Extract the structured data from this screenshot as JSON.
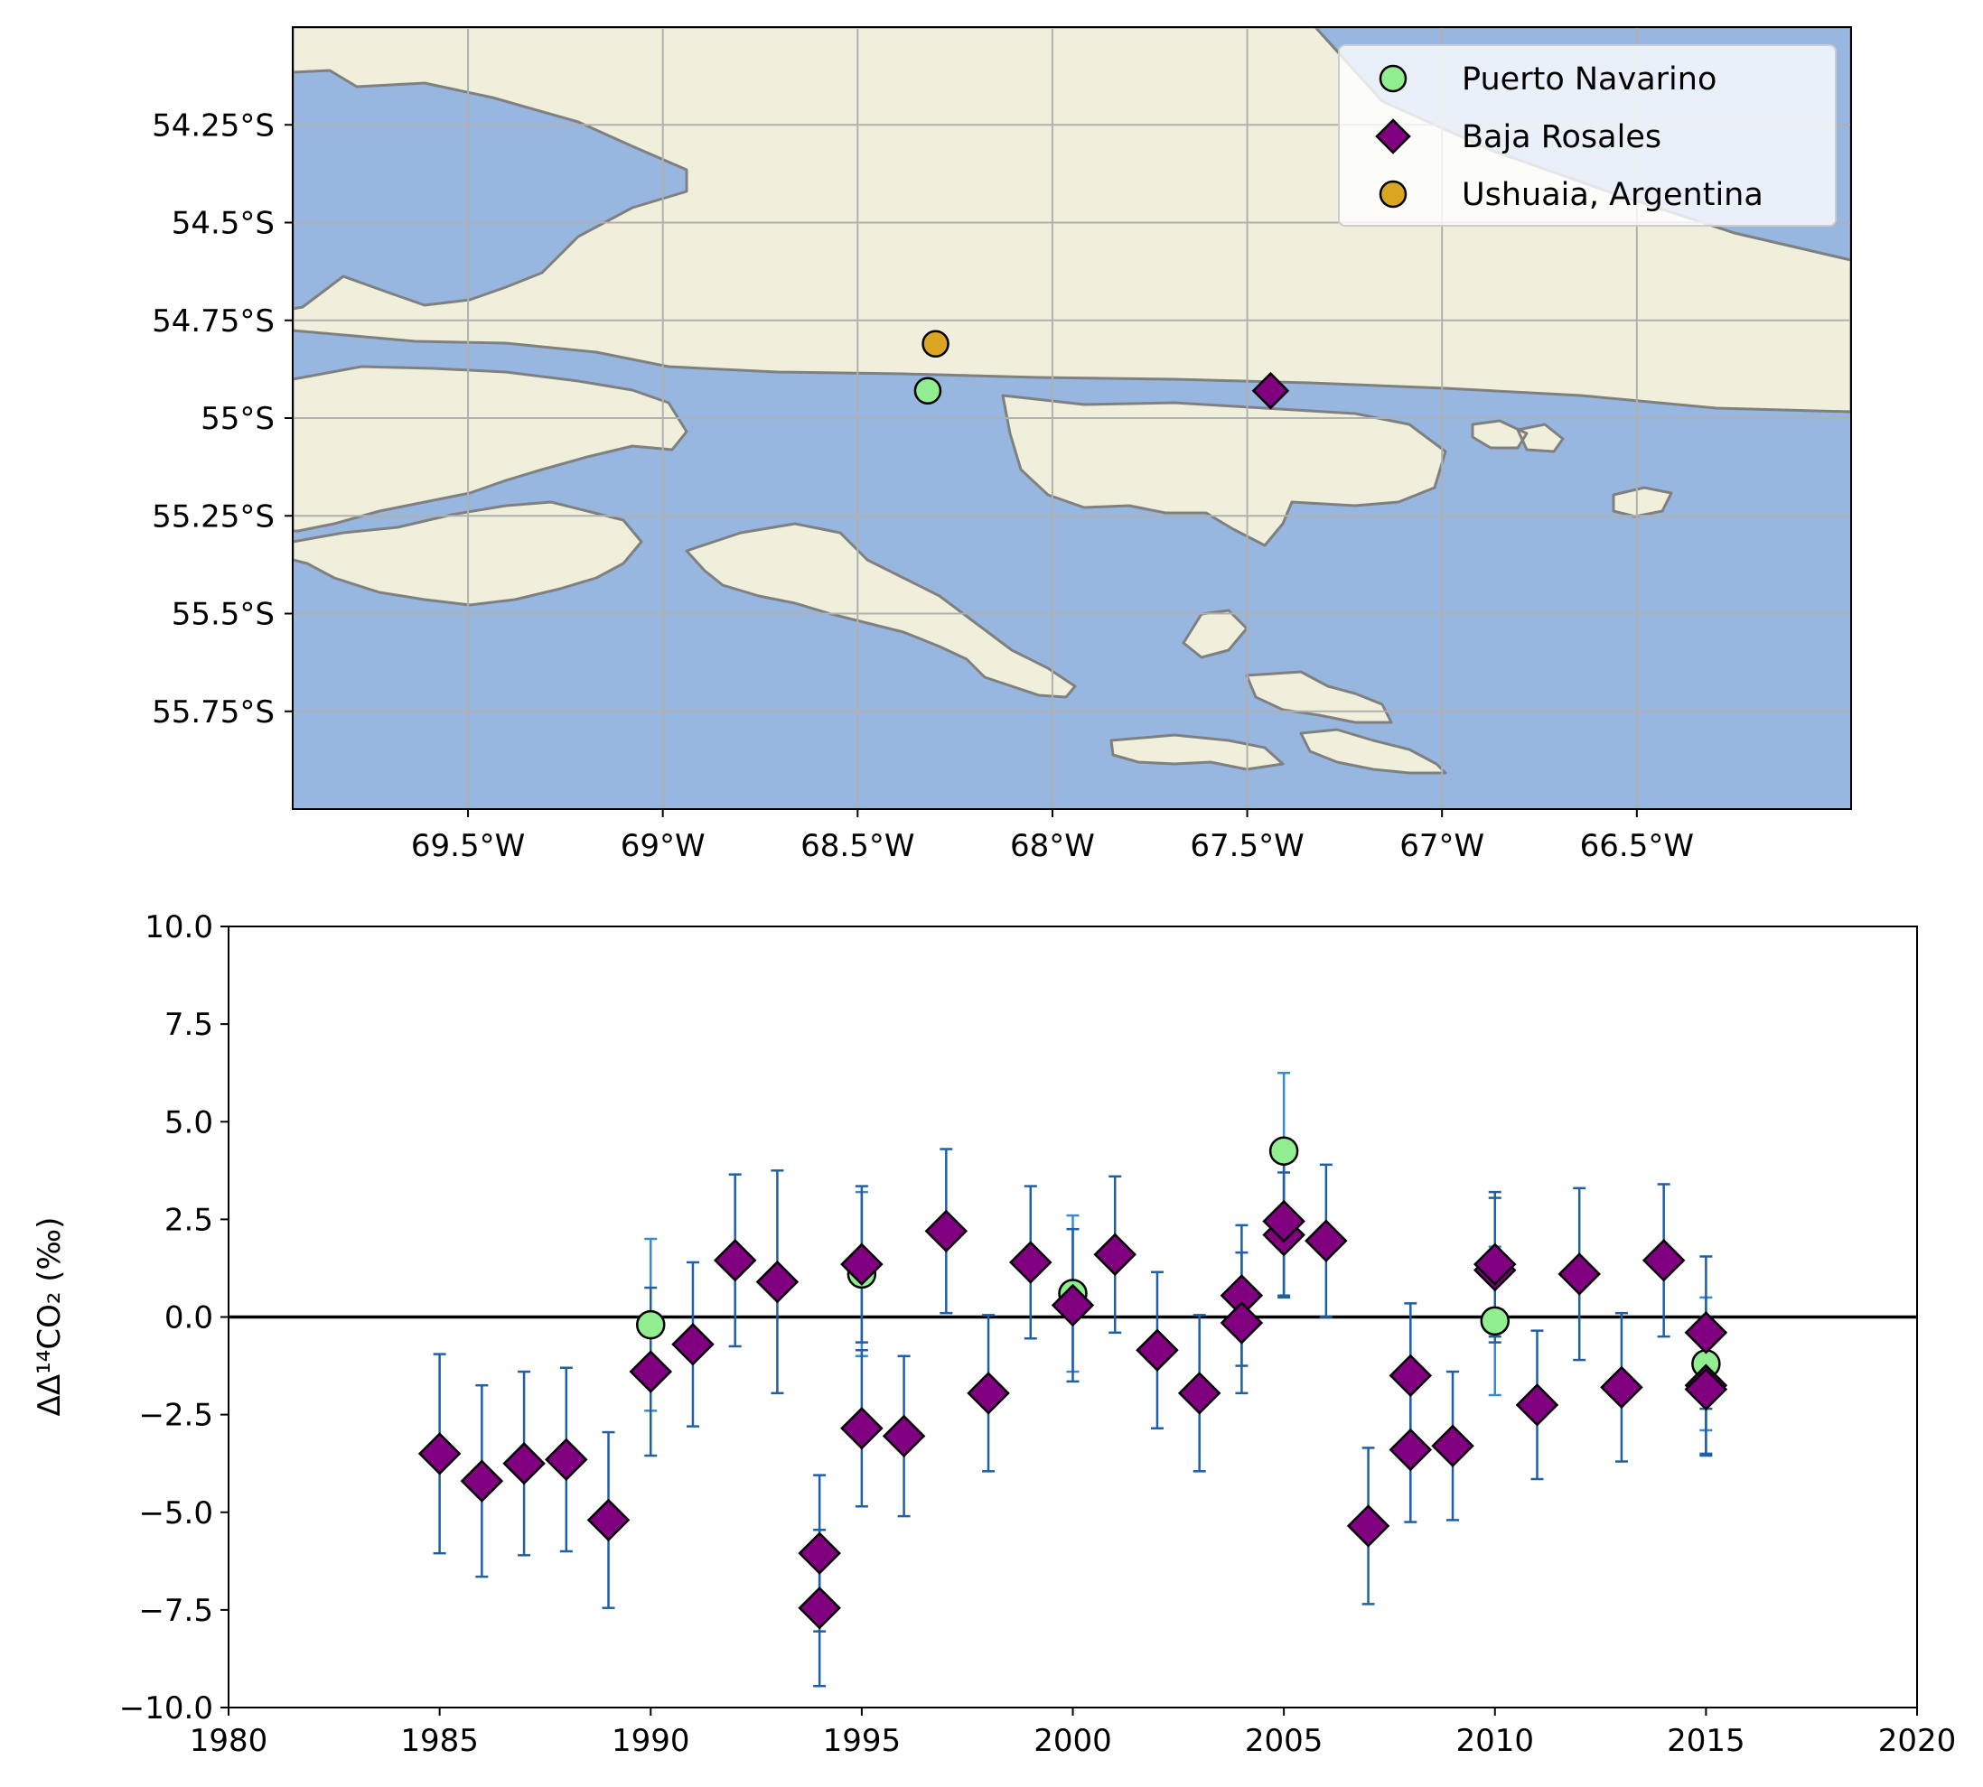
{
  "colors": {
    "land": "#efefdc",
    "ocean": "#97b6e0",
    "coast": "#808080",
    "grid": "#b0b0b0",
    "puerto_navarino": "#90ee90",
    "baja_rosales": "#800080",
    "ushuaia": "#daa520",
    "errorbar": "#1f5fa6",
    "errorbar_light": "#3a8ad0",
    "zero_line": "#000000"
  },
  "chart_data": [
    {
      "type": "map",
      "lon_range": [
        -69.95,
        -65.95
      ],
      "lat_range": [
        -56.0,
        -54.0
      ],
      "gridlines": true,
      "legend_position": "top-right",
      "x_ticks": [
        {
          "value": -69.5,
          "label": "69.5°W"
        },
        {
          "value": -69.0,
          "label": "69°W"
        },
        {
          "value": -68.5,
          "label": "68.5°W"
        },
        {
          "value": -68.0,
          "label": "68°W"
        },
        {
          "value": -67.5,
          "label": "67.5°W"
        },
        {
          "value": -67.0,
          "label": "67°W"
        },
        {
          "value": -66.5,
          "label": "66.5°W"
        }
      ],
      "y_ticks": [
        {
          "value": -54.25,
          "label": "54.25°S"
        },
        {
          "value": -54.5,
          "label": "54.5°S"
        },
        {
          "value": -54.75,
          "label": "54.75°S"
        },
        {
          "value": -55.0,
          "label": "55°S"
        },
        {
          "value": -55.25,
          "label": "55.25°S"
        },
        {
          "value": -55.5,
          "label": "55.5°S"
        },
        {
          "value": -55.75,
          "label": "55.75°S"
        }
      ],
      "sites": [
        {
          "name": "Puerto Navarino",
          "lon": -68.32,
          "lat": -54.93,
          "marker": "circle",
          "color": "#90ee90"
        },
        {
          "name": "Baja Rosales",
          "lon": -67.44,
          "lat": -54.93,
          "marker": "diamond",
          "color": "#800080"
        },
        {
          "name": "Ushuaia, Argentina",
          "lon": -68.3,
          "lat": -54.81,
          "marker": "circle",
          "color": "#daa520"
        }
      ],
      "legend": [
        "Puerto Navarino",
        "Baja Rosales",
        "Ushuaia, Argentina"
      ]
    },
    {
      "type": "scatter",
      "xlim": [
        1980,
        2020
      ],
      "ylim": [
        -10,
        10
      ],
      "x_ticks": [
        1980,
        1985,
        1990,
        1995,
        2000,
        2005,
        2010,
        2015,
        2020
      ],
      "y_ticks": [
        "−10.0",
        "−7.5",
        "−5.0",
        "−2.5",
        "0.0",
        "2.5",
        "5.0",
        "7.5",
        "10.0"
      ],
      "y_tick_values": [
        -10,
        -7.5,
        -5,
        -2.5,
        0,
        2.5,
        5,
        7.5,
        10
      ],
      "ylabel": "ΔΔ¹⁴CO₂ (‰)",
      "reference_line": 0,
      "grid": false,
      "series": [
        {
          "name": "Puerto Navarino",
          "marker": "circle",
          "points": [
            {
              "x": 1990,
              "y": -0.2,
              "err": 2.2
            },
            {
              "x": 1995,
              "y": 1.1,
              "err": 2.1
            },
            {
              "x": 2000,
              "y": 0.6,
              "err": 2.0
            },
            {
              "x": 2005,
              "y": 4.25,
              "err": 2.0
            },
            {
              "x": 2010,
              "y": -0.1,
              "err": 1.9
            },
            {
              "x": 2015,
              "y": -1.2,
              "err": 1.7
            }
          ]
        },
        {
          "name": "Baja Rosales",
          "marker": "diamond",
          "points": [
            {
              "x": 1985,
              "y": -3.5,
              "err": 2.55
            },
            {
              "x": 1986,
              "y": -4.2,
              "err": 2.45
            },
            {
              "x": 1987,
              "y": -3.75,
              "err": 2.35
            },
            {
              "x": 1988,
              "y": -3.65,
              "err": 2.35
            },
            {
              "x": 1989,
              "y": -5.2,
              "err": 2.25
            },
            {
              "x": 1990,
              "y": -1.4,
              "err": 2.15
            },
            {
              "x": 1991,
              "y": -0.7,
              "err": 2.1
            },
            {
              "x": 1992,
              "y": 1.45,
              "err": 2.2
            },
            {
              "x": 1993,
              "y": 0.9,
              "err": 2.85
            },
            {
              "x": 1994,
              "y": -6.05,
              "err": 2.0
            },
            {
              "x": 1994,
              "y": -7.45,
              "err": 2.0
            },
            {
              "x": 1995,
              "y": 1.35,
              "err": 2.0
            },
            {
              "x": 1995,
              "y": -2.85,
              "err": 2.0
            },
            {
              "x": 1996,
              "y": -3.05,
              "err": 2.05
            },
            {
              "x": 1997,
              "y": 2.2,
              "err": 2.1
            },
            {
              "x": 1998,
              "y": -1.95,
              "err": 2.0
            },
            {
              "x": 1999,
              "y": 1.4,
              "err": 1.95
            },
            {
              "x": 2000,
              "y": 0.3,
              "err": 1.95
            },
            {
              "x": 2001,
              "y": 1.6,
              "err": 2.0
            },
            {
              "x": 2002,
              "y": -0.85,
              "err": 2.0
            },
            {
              "x": 2003,
              "y": -1.95,
              "err": 2.0
            },
            {
              "x": 2004,
              "y": 0.55,
              "err": 1.8
            },
            {
              "x": 2004,
              "y": -0.15,
              "err": 1.8
            },
            {
              "x": 2005,
              "y": 2.1,
              "err": 1.6
            },
            {
              "x": 2005,
              "y": 2.45,
              "err": 1.9
            },
            {
              "x": 2006,
              "y": 1.95,
              "err": 1.95
            },
            {
              "x": 2007,
              "y": -5.35,
              "err": 2.0
            },
            {
              "x": 2008,
              "y": -1.5,
              "err": 1.85
            },
            {
              "x": 2008,
              "y": -3.4,
              "err": 1.85
            },
            {
              "x": 2009,
              "y": -3.3,
              "err": 1.9
            },
            {
              "x": 2010,
              "y": 1.2,
              "err": 1.85
            },
            {
              "x": 2010,
              "y": 1.35,
              "err": 1.85
            },
            {
              "x": 2011,
              "y": -2.25,
              "err": 1.9
            },
            {
              "x": 2012,
              "y": 1.1,
              "err": 2.2
            },
            {
              "x": 2013,
              "y": -1.8,
              "err": 1.9
            },
            {
              "x": 2014,
              "y": 1.45,
              "err": 1.95
            },
            {
              "x": 2015,
              "y": -0.4,
              "err": 1.95
            },
            {
              "x": 2015,
              "y": -1.75,
              "err": 1.75
            },
            {
              "x": 2015,
              "y": -1.85,
              "err": 1.7
            }
          ]
        }
      ]
    }
  ]
}
